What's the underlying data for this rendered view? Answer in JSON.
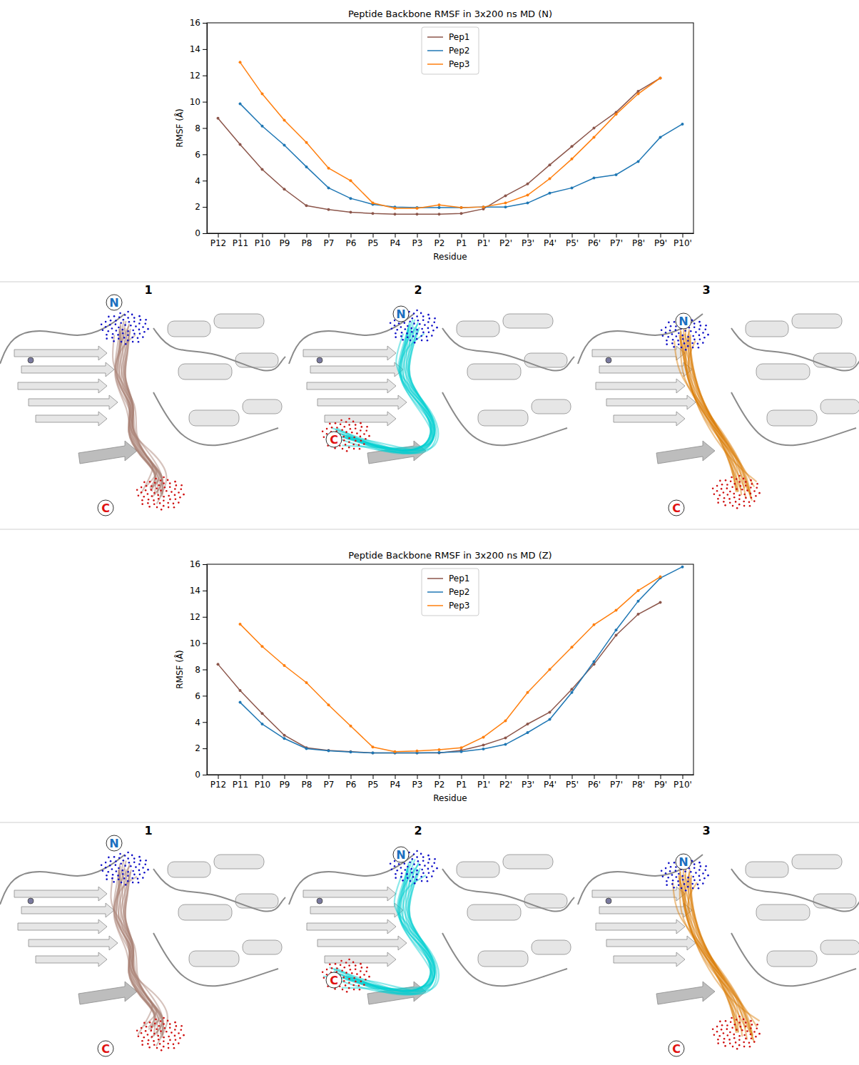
{
  "chart_data": [
    {
      "type": "line",
      "title": "Peptide Backbone RMSF in 3x200 ns MD (N)",
      "x_label": "Residue",
      "y_label": "RMSF (Å)",
      "categories": [
        "P12",
        "P11",
        "P10",
        "P9",
        "P8",
        "P7",
        "P6",
        "P5",
        "P4",
        "P3",
        "P2",
        "P1",
        "P1'",
        "P2'",
        "P3'",
        "P4'",
        "P5'",
        "P6'",
        "P7'",
        "P8'",
        "P9'",
        "P10'"
      ],
      "ylim": [
        0,
        16
      ],
      "yticks": [
        0,
        2,
        4,
        6,
        8,
        10,
        12,
        14,
        16
      ],
      "legend": "upper center",
      "marker": "circle",
      "grid": false,
      "series": [
        {
          "name": "Pep1",
          "color": "#8c564b",
          "values": [
            8.75,
            6.75,
            4.85,
            3.35,
            2.1,
            1.8,
            1.6,
            1.5,
            1.45,
            1.45,
            1.45,
            1.5,
            1.85,
            2.85,
            3.75,
            5.2,
            6.6,
            8.0,
            9.2,
            10.8,
            11.8,
            null
          ]
        },
        {
          "name": "Pep2",
          "color": "#1f77b4",
          "values": [
            null,
            9.85,
            8.15,
            6.7,
            5.05,
            3.45,
            2.65,
            2.2,
            2.0,
            1.95,
            1.95,
            1.95,
            2.0,
            2.0,
            2.3,
            3.05,
            3.45,
            4.2,
            4.45,
            5.45,
            7.3,
            8.3
          ]
        },
        {
          "name": "Pep3",
          "color": "#ff7f0e",
          "values": [
            null,
            13.0,
            10.6,
            8.6,
            6.9,
            4.95,
            4.0,
            2.3,
            1.9,
            1.9,
            2.15,
            1.95,
            2.0,
            2.3,
            2.9,
            4.15,
            5.65,
            7.3,
            9.05,
            10.6,
            11.8,
            null
          ]
        }
      ]
    },
    {
      "type": "line",
      "title": "Peptide Backbone RMSF in 3x200 ns MD (Z)",
      "x_label": "Residue",
      "y_label": "RMSF (Å)",
      "categories": [
        "P12",
        "P11",
        "P10",
        "P9",
        "P8",
        "P7",
        "P6",
        "P5",
        "P4",
        "P3",
        "P2",
        "P1",
        "P1'",
        "P2'",
        "P3'",
        "P4'",
        "P5'",
        "P6'",
        "P7'",
        "P8'",
        "P9'",
        "P10'"
      ],
      "ylim": [
        0,
        16
      ],
      "yticks": [
        0,
        2,
        4,
        6,
        8,
        10,
        12,
        14,
        16
      ],
      "legend": "upper center",
      "marker": "circle",
      "grid": false,
      "series": [
        {
          "name": "Pep1",
          "color": "#8c564b",
          "values": [
            8.4,
            6.4,
            4.65,
            3.0,
            2.05,
            1.85,
            1.75,
            1.65,
            1.65,
            1.65,
            1.65,
            1.85,
            2.25,
            2.8,
            3.85,
            4.75,
            6.5,
            8.4,
            10.6,
            12.2,
            13.1,
            null
          ]
        },
        {
          "name": "Pep2",
          "color": "#1f77b4",
          "values": [
            null,
            5.5,
            3.85,
            2.75,
            1.98,
            1.82,
            1.72,
            1.65,
            1.65,
            1.65,
            1.68,
            1.75,
            1.95,
            2.3,
            3.2,
            4.2,
            6.25,
            8.6,
            11.0,
            13.2,
            14.95,
            15.8
          ]
        },
        {
          "name": "Pep3",
          "color": "#ff7f0e",
          "values": [
            null,
            11.45,
            9.75,
            8.3,
            7.0,
            5.3,
            3.7,
            2.1,
            1.75,
            1.8,
            1.9,
            2.05,
            2.85,
            4.1,
            6.25,
            8.0,
            9.7,
            11.4,
            12.5,
            14.0,
            15.05,
            null
          ]
        }
      ]
    }
  ],
  "structure_rows": [
    {
      "panels": [
        {
          "label": "1",
          "n_label": "N",
          "c_label": "C",
          "color": "#a47a6c"
        },
        {
          "label": "2",
          "n_label": "N",
          "c_label": "C",
          "color": "#00cfd0"
        },
        {
          "label": "3",
          "n_label": "N",
          "c_label": "C",
          "color": "#d97900"
        }
      ]
    },
    {
      "panels": [
        {
          "label": "1",
          "n_label": "N",
          "c_label": "C",
          "color": "#a47a6c"
        },
        {
          "label": "2",
          "n_label": "N",
          "c_label": "C",
          "color": "#00cfd0"
        },
        {
          "label": "3",
          "n_label": "N",
          "c_label": "C",
          "color": "#d97900"
        }
      ]
    }
  ]
}
